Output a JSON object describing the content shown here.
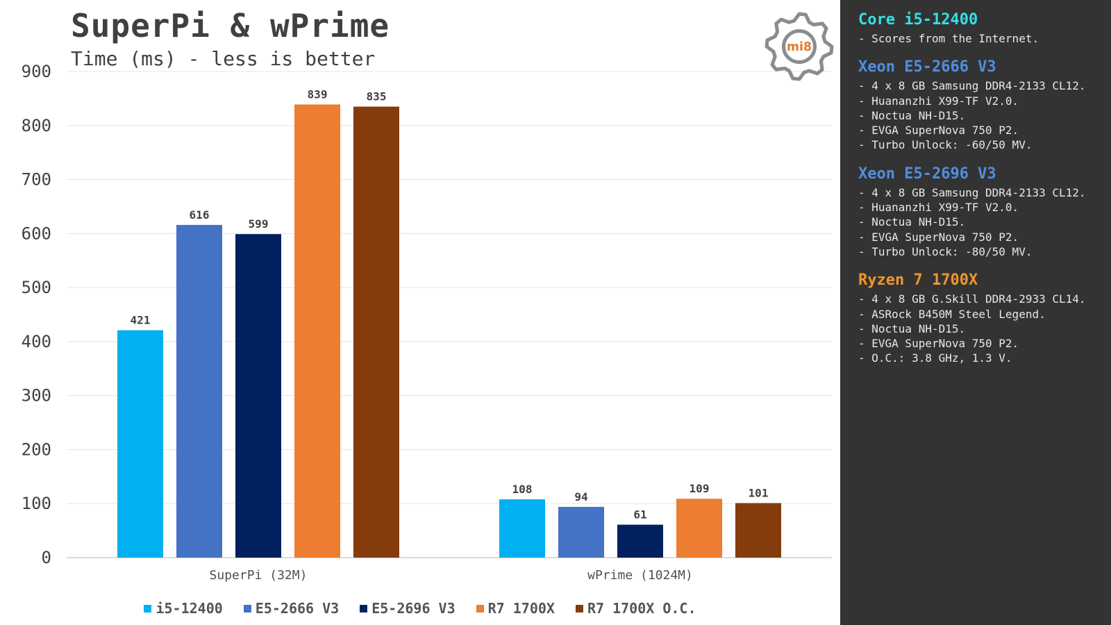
{
  "chart": {
    "title": "SuperPi & wPrime",
    "subtitle": "Time (ms) - less is better",
    "logo_text": "mi8"
  },
  "chart_data": {
    "type": "bar",
    "title": "SuperPi & wPrime",
    "subtitle": "Time (ms) - less is better",
    "xlabel": "",
    "ylabel": "",
    "categories": [
      "SuperPi (32M)",
      "wPrime (1024M)"
    ],
    "yticks": [
      "0",
      "100",
      "200",
      "300",
      "400",
      "500",
      "600",
      "700",
      "800",
      "900"
    ],
    "ylim": [
      0,
      900
    ],
    "grid": true,
    "legend_position": "bottom",
    "series": [
      {
        "name": "i5-12400",
        "color": "#00b0f0",
        "values": [
          421,
          108
        ]
      },
      {
        "name": "E5-2666 V3",
        "color": "#4472c4",
        "values": [
          616,
          94
        ]
      },
      {
        "name": "E5-2696 V3",
        "color": "#002060",
        "values": [
          599,
          61
        ]
      },
      {
        "name": "R7 1700X",
        "color": "#ed7d31",
        "values": [
          839,
          109
        ]
      },
      {
        "name": "R7 1700X O.C.",
        "color": "#843c0c",
        "values": [
          835,
          101
        ]
      }
    ]
  },
  "panel": {
    "sections": [
      {
        "heading": "Core i5-12400",
        "color": "#33e0e8",
        "lines": [
          "- Scores from the Internet."
        ]
      },
      {
        "heading": "Xeon E5-2666 V3",
        "color": "#4f8fe0",
        "lines": [
          "- 4 x 8 GB Samsung DDR4-2133 CL12.",
          "- Huananzhi X99-TF V2.0.",
          "- Noctua NH-D15.",
          "- EVGA SuperNova 750 P2.",
          "- Turbo Unlock: -60/50 MV."
        ]
      },
      {
        "heading": "Xeon E5-2696 V3",
        "color": "#4f8fe0",
        "lines": [
          "- 4 x 8 GB Samsung DDR4-2133 CL12.",
          "- Huananzhi X99-TF V2.0.",
          "- Noctua NH-D15.",
          "- EVGA SuperNova 750 P2.",
          "- Turbo Unlock: -80/50 MV."
        ]
      },
      {
        "heading": "Ryzen 7 1700X",
        "color": "#f0962d",
        "lines": [
          "- 4 x 8 GB G.Skill DDR4-2933 CL14.",
          "- ASRock B450M Steel Legend.",
          "- Noctua NH-D15.",
          "- EVGA SuperNova 750 P2.",
          "- O.C.: 3.8 GHz, 1.3 V."
        ]
      }
    ]
  }
}
